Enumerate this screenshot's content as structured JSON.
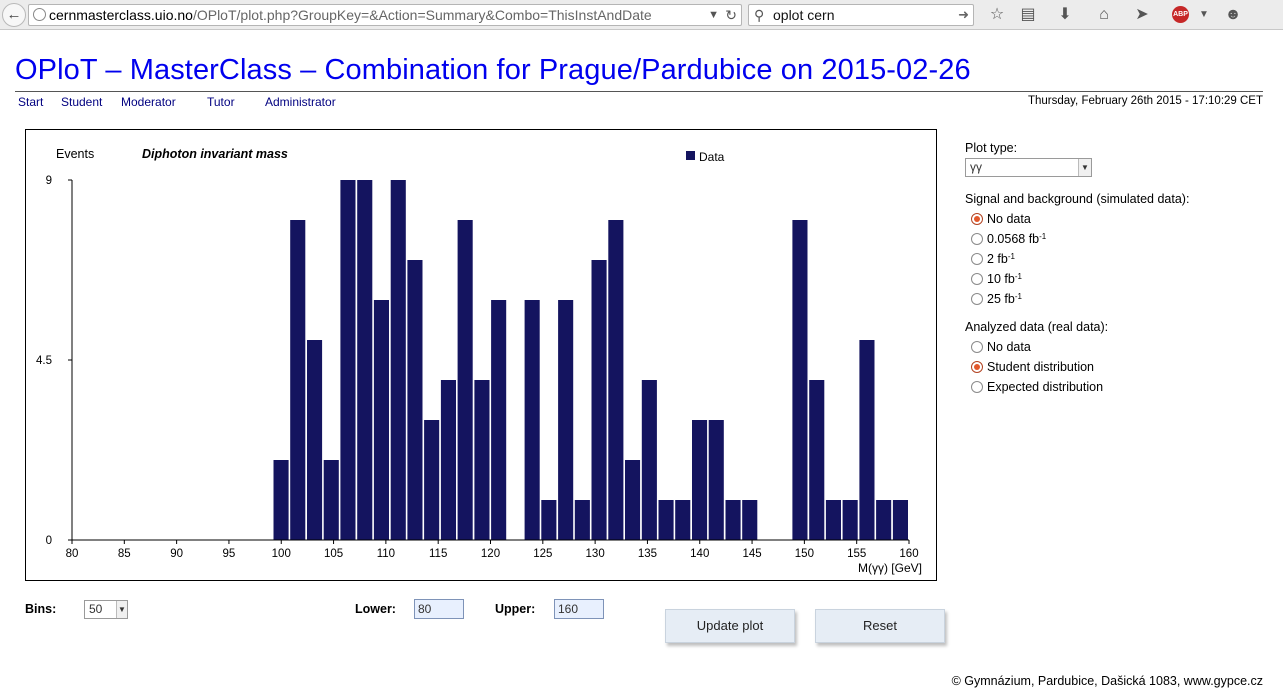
{
  "browser": {
    "url_host": "cernmasterclass.uio.no",
    "url_path": "/OPloT/plot.php?GroupKey=&Action=Summary&Combo=ThisInstAndDate",
    "search_text": "oplot cern"
  },
  "page": {
    "title": "OPloT – MasterClass – Combination for Prague/Pardubice on 2015-02-26",
    "datetime": "Thursday, February 26th 2015 - 17:10:29 CET",
    "nav": [
      "Start",
      "Student",
      "Moderator",
      "Tutor",
      "Administrator"
    ]
  },
  "chart_data": {
    "type": "bar",
    "title": "Diphoton invariant mass",
    "ylabel": "Events",
    "xlabel": "M(γγ) [GeV]",
    "legend": {
      "entries": [
        "Data"
      ],
      "position": "top-right"
    },
    "xlim": [
      80,
      160
    ],
    "ylim": [
      0,
      9
    ],
    "x_ticks": [
      80,
      85,
      90,
      95,
      100,
      105,
      110,
      115,
      120,
      125,
      130,
      135,
      140,
      145,
      150,
      155,
      160
    ],
    "y_ticks": [
      0,
      4.5,
      9
    ],
    "bin_width": 1.6,
    "series": [
      {
        "name": "Data",
        "color": "#14145f",
        "bin_low_edges": [
          80,
          81.6,
          83.2,
          84.8,
          86.4,
          88,
          89.6,
          91.2,
          92.8,
          94.4,
          96,
          97.6,
          99.2,
          100.8,
          102.4,
          104,
          105.6,
          107.2,
          108.8,
          110.4,
          112,
          113.6,
          115.2,
          116.8,
          118.4,
          120,
          121.6,
          123.2,
          124.8,
          126.4,
          128,
          129.6,
          131.2,
          132.8,
          134.4,
          136,
          137.6,
          139.2,
          140.8,
          142.4,
          144,
          145.6,
          147.2,
          148.8,
          150.4,
          152,
          153.6,
          155.2,
          156.8,
          158.4
        ],
        "values": [
          0,
          0,
          0,
          0,
          0,
          0,
          0,
          0,
          0,
          0,
          0,
          0,
          2,
          8,
          5,
          2,
          9,
          9,
          6,
          9,
          7,
          3,
          4,
          8,
          4,
          6,
          0,
          6,
          1,
          6,
          1,
          7,
          8,
          2,
          4,
          1,
          1,
          3,
          3,
          1,
          1,
          0,
          0,
          8,
          4,
          1,
          1,
          5,
          1,
          1
        ]
      }
    ]
  },
  "controls": {
    "plot_type_label": "Plot type:",
    "plot_type_value": "γγ",
    "signal_label": "Signal and background (simulated data):",
    "signal_options": [
      {
        "label": "No data",
        "sup": "",
        "selected": true
      },
      {
        "label": "0.0568 fb",
        "sup": "-1",
        "selected": false
      },
      {
        "label": "2 fb",
        "sup": "-1",
        "selected": false
      },
      {
        "label": "10 fb",
        "sup": "-1",
        "selected": false
      },
      {
        "label": "25 fb",
        "sup": "-1",
        "selected": false
      }
    ],
    "analyzed_label": "Analyzed data (real data):",
    "analyzed_options": [
      {
        "label": "No data",
        "selected": false
      },
      {
        "label": "Student distribution",
        "selected": true
      },
      {
        "label": "Expected distribution",
        "selected": false
      }
    ],
    "bins_label": "Bins:",
    "bins_value": "50",
    "lower_label": "Lower:",
    "lower_value": "80",
    "upper_label": "Upper:",
    "upper_value": "160",
    "update_label": "Update plot",
    "reset_label": "Reset"
  },
  "footer": "© Gymnázium, Pardubice, Dašická 1083, www.gypce.cz"
}
